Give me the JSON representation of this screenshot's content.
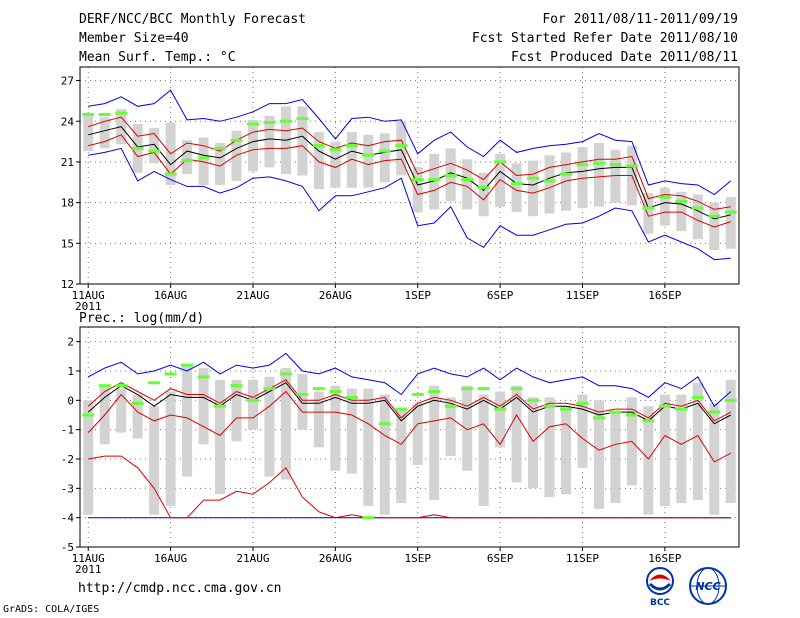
{
  "header": {
    "title": "DERF/NCC/BCC Monthly Forecast",
    "member_size": "Member Size=40",
    "variable": "Mean Surf. Temp.: °C",
    "period": "For 2011/08/11-2011/09/19",
    "start_date": "Fcst Started Refer Date 2011/08/10",
    "produced_date": "Fcst Produced Date 2011/08/11"
  },
  "footer": {
    "url": "http://cmdp.ncc.cma.gov.cn",
    "grads": "GrADS: COLA/IGES",
    "logo_bcc": "BCC",
    "logo_ncc": "NCC"
  },
  "colors": {
    "box": "#d3d3d3",
    "median": "#66ff33",
    "mean": "#000000",
    "std": "#dd0000",
    "extreme": "#0000ee"
  },
  "chart_data": [
    {
      "type": "box",
      "id": "temperature",
      "ylabel": "Mean Surf. Temp.: °C",
      "ylim": [
        12,
        28
      ],
      "yticks": [
        12,
        15,
        18,
        21,
        24,
        27
      ],
      "xlim": [
        0.5,
        40.5
      ],
      "xticks": [
        {
          "day": 1,
          "label": "11AUG",
          "sub": "2011"
        },
        {
          "day": 6,
          "label": "16AUG"
        },
        {
          "day": 11,
          "label": "21AUG"
        },
        {
          "day": 16,
          "label": "26AUG"
        },
        {
          "day": 21,
          "label": "1SEP"
        },
        {
          "day": 26,
          "label": "6SEP"
        },
        {
          "day": 31,
          "label": "11SEP"
        },
        {
          "day": 36,
          "label": "16SEP"
        }
      ],
      "grid": true,
      "mean": [
        23.0,
        23.3,
        23.6,
        22.1,
        22.3,
        20.8,
        21.8,
        21.5,
        21.3,
        22.0,
        22.5,
        22.7,
        22.6,
        22.9,
        21.8,
        21.2,
        21.8,
        21.5,
        21.7,
        21.9,
        19.3,
        19.6,
        20.2,
        19.8,
        18.9,
        20.3,
        19.4,
        19.3,
        19.8,
        20.2,
        20.3,
        20.5,
        20.6,
        20.6,
        17.6,
        18.0,
        17.9,
        17.4,
        16.8,
        17.1
      ],
      "std_upper": [
        23.6,
        24.0,
        24.3,
        22.9,
        23.1,
        21.6,
        22.4,
        22.2,
        21.8,
        22.6,
        23.2,
        23.4,
        23.3,
        23.5,
        22.5,
        22.0,
        22.4,
        22.2,
        22.5,
        22.6,
        20.1,
        20.5,
        20.9,
        20.4,
        19.7,
        21.0,
        20.0,
        20.1,
        20.6,
        20.8,
        21.0,
        21.2,
        21.2,
        21.4,
        18.3,
        18.6,
        18.5,
        18.1,
        17.5,
        17.7
      ],
      "std_lower": [
        22.2,
        22.5,
        23.0,
        21.4,
        21.7,
        20.1,
        21.2,
        21.0,
        20.7,
        21.5,
        21.9,
        22.0,
        22.0,
        22.2,
        21.0,
        20.6,
        21.2,
        20.8,
        21.1,
        21.2,
        18.6,
        18.9,
        19.5,
        19.2,
        18.2,
        19.7,
        18.9,
        18.7,
        19.1,
        19.6,
        19.8,
        19.9,
        20.0,
        20.0,
        17.0,
        17.3,
        17.3,
        16.7,
        16.2,
        16.6
      ],
      "max": [
        25.1,
        25.3,
        25.8,
        25.1,
        25.3,
        26.3,
        24.1,
        24.2,
        24.0,
        24.3,
        24.7,
        25.3,
        25.3,
        25.6,
        24.2,
        22.7,
        24.2,
        24.3,
        24.0,
        24.1,
        21.6,
        22.6,
        23.2,
        22.1,
        21.4,
        22.6,
        21.7,
        22.0,
        22.2,
        22.3,
        22.5,
        23.1,
        22.6,
        22.5,
        19.3,
        19.6,
        19.4,
        19.3,
        18.6,
        19.6
      ],
      "min": [
        21.5,
        21.7,
        22.0,
        19.6,
        20.3,
        19.7,
        19.2,
        19.2,
        18.7,
        19.1,
        19.8,
        19.9,
        19.6,
        19.2,
        17.4,
        18.5,
        18.5,
        18.8,
        19.1,
        19.8,
        16.3,
        16.5,
        17.7,
        15.4,
        14.7,
        16.3,
        15.6,
        15.6,
        16.0,
        16.4,
        16.5,
        17.0,
        17.6,
        17.4,
        15.1,
        15.6,
        15.1,
        14.6,
        13.8,
        13.9
      ],
      "box_high": [
        24.6,
        24.3,
        24.9,
        23.8,
        23.5,
        23.9,
        22.6,
        22.8,
        22.4,
        23.3,
        24.1,
        24.4,
        25.1,
        25.1,
        23.2,
        22.5,
        23.2,
        23.0,
        23.1,
        24.0,
        20.6,
        21.6,
        22.0,
        21.2,
        20.2,
        21.6,
        20.9,
        21.1,
        21.5,
        21.7,
        22.1,
        22.4,
        21.9,
        22.2,
        18.7,
        19.1,
        18.8,
        18.6,
        18.0,
        18.4
      ],
      "box_low": [
        21.8,
        22.0,
        22.3,
        20.2,
        20.9,
        19.3,
        20.1,
        19.3,
        19.3,
        19.6,
        20.3,
        20.6,
        20.1,
        20.0,
        19.0,
        19.1,
        19.1,
        19.1,
        19.5,
        20.0,
        17.3,
        17.5,
        18.1,
        17.5,
        17.0,
        17.7,
        17.3,
        17.0,
        17.2,
        17.4,
        17.6,
        17.7,
        18.0,
        17.8,
        15.7,
        16.3,
        15.9,
        15.3,
        14.5,
        14.6
      ],
      "median": [
        24.5,
        24.5,
        24.6,
        22.0,
        21.8,
        20.1,
        21.1,
        21.3,
        22.0,
        22.6,
        23.8,
        23.9,
        24.0,
        24.2,
        22.2,
        21.9,
        22.2,
        21.5,
        21.8,
        22.2,
        19.7,
        19.7,
        20.0,
        19.7,
        19.1,
        21.0,
        19.4,
        19.8,
        19.6,
        20.1,
        20.8,
        20.9,
        20.8,
        20.7,
        17.6,
        18.4,
        18.1,
        17.6,
        17.0,
        17.3
      ]
    },
    {
      "type": "box",
      "id": "precipitation",
      "ylabel": "Prec.: log(mm/d)",
      "ylim": [
        -5,
        2.5
      ],
      "yticks": [
        -5,
        -4,
        -3,
        -2,
        -1,
        0,
        1,
        2
      ],
      "xlim": [
        0.5,
        40.5
      ],
      "xticks": [
        {
          "day": 1,
          "label": "11AUG",
          "sub": "2011"
        },
        {
          "day": 6,
          "label": "16AUG"
        },
        {
          "day": 11,
          "label": "21AUG"
        },
        {
          "day": 16,
          "label": "26AUG"
        },
        {
          "day": 21,
          "label": "1SEP"
        },
        {
          "day": 26,
          "label": "6SEP"
        },
        {
          "day": 31,
          "label": "11SEP"
        },
        {
          "day": 36,
          "label": "16SEP"
        }
      ],
      "grid": true,
      "mean": [
        -0.4,
        0.1,
        0.5,
        0.2,
        -0.2,
        0.2,
        0.1,
        0.1,
        -0.2,
        0.2,
        0.0,
        0.3,
        0.6,
        -0.1,
        -0.1,
        0.1,
        -0.1,
        -0.1,
        0.0,
        -0.7,
        -0.2,
        0.0,
        -0.1,
        -0.3,
        0.0,
        -0.3,
        0.1,
        -0.4,
        -0.2,
        -0.2,
        -0.3,
        -0.5,
        -0.4,
        -0.4,
        -0.7,
        -0.2,
        -0.3,
        -0.1,
        -0.8,
        -0.5
      ],
      "std_upper": [
        -0.2,
        0.3,
        0.6,
        0.3,
        0.0,
        0.4,
        0.2,
        0.2,
        -0.1,
        0.3,
        0.1,
        0.4,
        0.7,
        0.0,
        0.0,
        0.2,
        0.0,
        0.0,
        0.1,
        -0.6,
        -0.1,
        0.1,
        0.0,
        -0.2,
        0.1,
        -0.2,
        0.2,
        -0.3,
        -0.1,
        -0.1,
        -0.2,
        -0.4,
        -0.3,
        -0.3,
        -0.6,
        -0.1,
        -0.2,
        0.0,
        -0.7,
        -0.4
      ],
      "std_lower": [
        -1.1,
        -0.5,
        0.2,
        -0.4,
        -0.7,
        -0.5,
        -0.6,
        -0.9,
        -1.2,
        -0.6,
        -0.6,
        -0.2,
        0.3,
        -0.4,
        -0.4,
        -0.4,
        -0.5,
        -0.8,
        -1.2,
        -1.5,
        -0.8,
        -0.7,
        -0.6,
        -1.0,
        -0.8,
        -1.5,
        -0.5,
        -1.4,
        -0.9,
        -0.8,
        -1.3,
        -1.7,
        -1.5,
        -1.4,
        -2.0,
        -1.2,
        -1.5,
        -1.2,
        -2.1,
        -1.8
      ],
      "max": [
        0.8,
        1.1,
        1.3,
        0.9,
        1.0,
        1.2,
        1.0,
        1.3,
        0.9,
        1.2,
        1.1,
        1.2,
        1.6,
        1.0,
        0.9,
        1.1,
        0.8,
        0.7,
        0.6,
        0.2,
        0.9,
        1.1,
        0.9,
        0.8,
        1.1,
        0.7,
        1.1,
        0.8,
        0.6,
        0.7,
        0.8,
        0.5,
        0.5,
        0.4,
        0.1,
        0.6,
        0.4,
        0.8,
        -0.2,
        0.3
      ],
      "min": [
        -4.0,
        -4.0,
        -4.0,
        -4.0,
        -4.0,
        -4.0,
        -4.0,
        -4.0,
        -4.0,
        -4.0,
        -4.0,
        -4.0,
        -4.0,
        -4.0,
        -4.0,
        -4.0,
        -4.0,
        -4.0,
        -4.0,
        -4.0,
        -4.0,
        -4.0,
        -4.0,
        -4.0,
        -4.0,
        -4.0,
        -4.0,
        -4.0,
        -4.0,
        -4.0,
        -4.0,
        -4.0,
        -4.0,
        -4.0,
        -4.0,
        -4.0,
        -4.0,
        -4.0,
        -4.0,
        -4.0
      ],
      "extreme_low": [
        -2.0,
        -1.9,
        -1.9,
        -2.3,
        -3.0,
        -4.0,
        -4.0,
        -3.4,
        -3.4,
        -3.1,
        -3.2,
        -2.8,
        -2.3,
        -3.3,
        -3.8,
        -4.0,
        -3.9,
        -4.0,
        -4.0,
        -4.0,
        -4.0,
        -3.9,
        -4.0,
        -4.0,
        -4.0,
        -4.0,
        -4.0,
        -4.0,
        -4.0,
        -4.0,
        -4.0,
        -4.0,
        -4.0,
        -4.0,
        -4.0,
        -4.0,
        -4.0,
        -4.0,
        -4.0,
        -4.0
      ],
      "box_high": [
        0.0,
        0.5,
        0.4,
        0.2,
        -0.2,
        0.3,
        1.2,
        1.1,
        0.7,
        0.7,
        0.7,
        0.8,
        1.1,
        0.9,
        0.3,
        0.5,
        0.4,
        0.4,
        0.2,
        -0.3,
        -0.1,
        0.5,
        0.1,
        0.5,
        0.2,
        0.3,
        0.5,
        0.1,
        0.1,
        -0.2,
        0.2,
        0.0,
        -0.4,
        0.1,
        -0.2,
        0.2,
        0.2,
        0.6,
        -0.1,
        0.7
      ],
      "box_low": [
        -3.9,
        -1.5,
        -1.1,
        -1.3,
        -3.9,
        -3.6,
        -2.6,
        -1.5,
        -3.2,
        -1.4,
        -1.0,
        -2.6,
        -2.7,
        -1.0,
        -1.6,
        -2.4,
        -2.5,
        -3.6,
        -3.9,
        -3.5,
        -2.2,
        -3.4,
        -1.9,
        -2.4,
        -3.6,
        -1.6,
        -2.8,
        -3.0,
        -3.3,
        -3.2,
        -2.3,
        -3.7,
        -3.5,
        -2.9,
        -3.9,
        -3.6,
        -3.5,
        -3.4,
        -3.9,
        -3.5
      ],
      "median": [
        -0.5,
        0.5,
        0.5,
        -0.1,
        0.6,
        0.9,
        1.2,
        0.8,
        -0.2,
        0.5,
        0.0,
        0.4,
        0.9,
        0.2,
        0.4,
        0.3,
        0.1,
        -4.0,
        -0.8,
        -0.3,
        0.2,
        0.3,
        -0.2,
        0.4,
        0.4,
        -0.3,
        0.4,
        0.0,
        -0.2,
        -0.3,
        -0.1,
        -0.6,
        -0.4,
        -0.5,
        -0.7,
        -0.2,
        -0.3,
        0.1,
        -0.4,
        0.0
      ]
    }
  ]
}
